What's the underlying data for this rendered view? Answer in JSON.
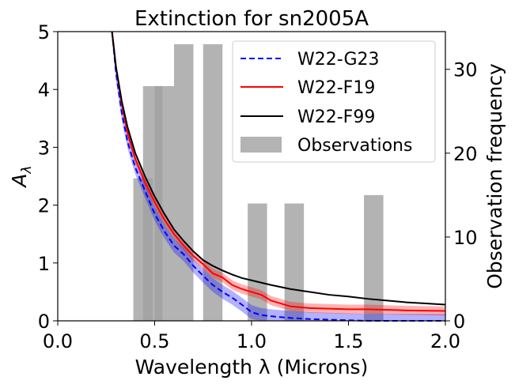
{
  "chart_data": {
    "type": "line",
    "title": "Extinction for sn2005A",
    "xlabel": "Wavelength λ (Microns)",
    "ylabel_main": "A",
    "ylabel_sub": "λ",
    "y2label": "Observation frequency",
    "xlim": [
      0,
      2.0
    ],
    "ylim": [
      0,
      5
    ],
    "y2lim": [
      0,
      34.5
    ],
    "x_ticks": [
      "0.0",
      "0.5",
      "1.0",
      "1.5",
      "2.0"
    ],
    "x_tick_values": [
      0,
      0.5,
      1.0,
      1.5,
      2.0
    ],
    "y_ticks": [
      "0",
      "1",
      "2",
      "3",
      "4",
      "5"
    ],
    "y_tick_values": [
      0,
      1,
      2,
      3,
      4,
      5
    ],
    "y2_ticks": [
      "0",
      "10",
      "20",
      "30"
    ],
    "y2_tick_values": [
      0,
      10,
      20,
      30
    ],
    "legend_position": "top-right",
    "series": [
      {
        "name": "W22-G23",
        "color": "#0000ff",
        "dash": "dashed",
        "x": [
          0.28,
          0.3,
          0.33,
          0.36,
          0.4,
          0.45,
          0.5,
          0.55,
          0.6,
          0.65,
          0.7,
          0.75,
          0.8,
          0.85,
          0.9,
          0.95,
          1.0,
          1.05,
          1.1,
          1.2,
          1.3,
          1.4,
          1.5,
          1.6,
          1.8,
          2.0
        ],
        "y": [
          5.0,
          4.3,
          3.6,
          3.1,
          2.65,
          2.25,
          1.85,
          1.55,
          1.3,
          1.15,
          0.95,
          0.78,
          0.62,
          0.5,
          0.4,
          0.28,
          0.15,
          0.1,
          0.08,
          0.05,
          0.03,
          0.02,
          0.01,
          0.0,
          0.0,
          0.0
        ],
        "band": 0.12
      },
      {
        "name": "W22-F19",
        "color": "#ff0000",
        "dash": "solid",
        "x": [
          0.28,
          0.3,
          0.33,
          0.36,
          0.4,
          0.45,
          0.5,
          0.55,
          0.6,
          0.65,
          0.7,
          0.75,
          0.8,
          0.85,
          0.9,
          0.95,
          1.0,
          1.05,
          1.1,
          1.2,
          1.3,
          1.4,
          1.5,
          1.6,
          1.8,
          2.0
        ],
        "y": [
          5.0,
          4.4,
          3.75,
          3.25,
          2.8,
          2.4,
          2.05,
          1.75,
          1.5,
          1.3,
          1.12,
          0.98,
          0.82,
          0.75,
          0.62,
          0.55,
          0.5,
          0.45,
          0.35,
          0.25,
          0.22,
          0.21,
          0.2,
          0.2,
          0.18,
          0.17
        ],
        "band": 0.08
      },
      {
        "name": "W22-F99",
        "color": "#000000",
        "dash": "solid",
        "x": [
          0.28,
          0.3,
          0.33,
          0.36,
          0.4,
          0.45,
          0.5,
          0.55,
          0.6,
          0.65,
          0.7,
          0.75,
          0.8,
          0.85,
          0.9,
          0.95,
          1.0,
          1.1,
          1.2,
          1.3,
          1.4,
          1.5,
          1.6,
          1.7,
          1.8,
          1.9,
          2.0
        ],
        "y": [
          5.0,
          4.4,
          3.8,
          3.35,
          2.9,
          2.5,
          2.15,
          1.85,
          1.58,
          1.38,
          1.2,
          1.05,
          0.95,
          0.87,
          0.8,
          0.74,
          0.7,
          0.62,
          0.55,
          0.5,
          0.45,
          0.42,
          0.38,
          0.35,
          0.32,
          0.3,
          0.28
        ],
        "band": 0
      }
    ],
    "observations": {
      "name": "Observations",
      "color": "#a0a0a0",
      "bars": [
        {
          "x": 0.44,
          "width": 0.1,
          "count": 17
        },
        {
          "x": 0.49,
          "width": 0.1,
          "count": 28
        },
        {
          "x": 0.55,
          "width": 0.1,
          "count": 28
        },
        {
          "x": 0.65,
          "width": 0.1,
          "count": 33
        },
        {
          "x": 0.8,
          "width": 0.1,
          "count": 33
        },
        {
          "x": 1.03,
          "width": 0.1,
          "count": 14
        },
        {
          "x": 1.22,
          "width": 0.1,
          "count": 14
        },
        {
          "x": 1.63,
          "width": 0.1,
          "count": 15
        }
      ]
    }
  }
}
